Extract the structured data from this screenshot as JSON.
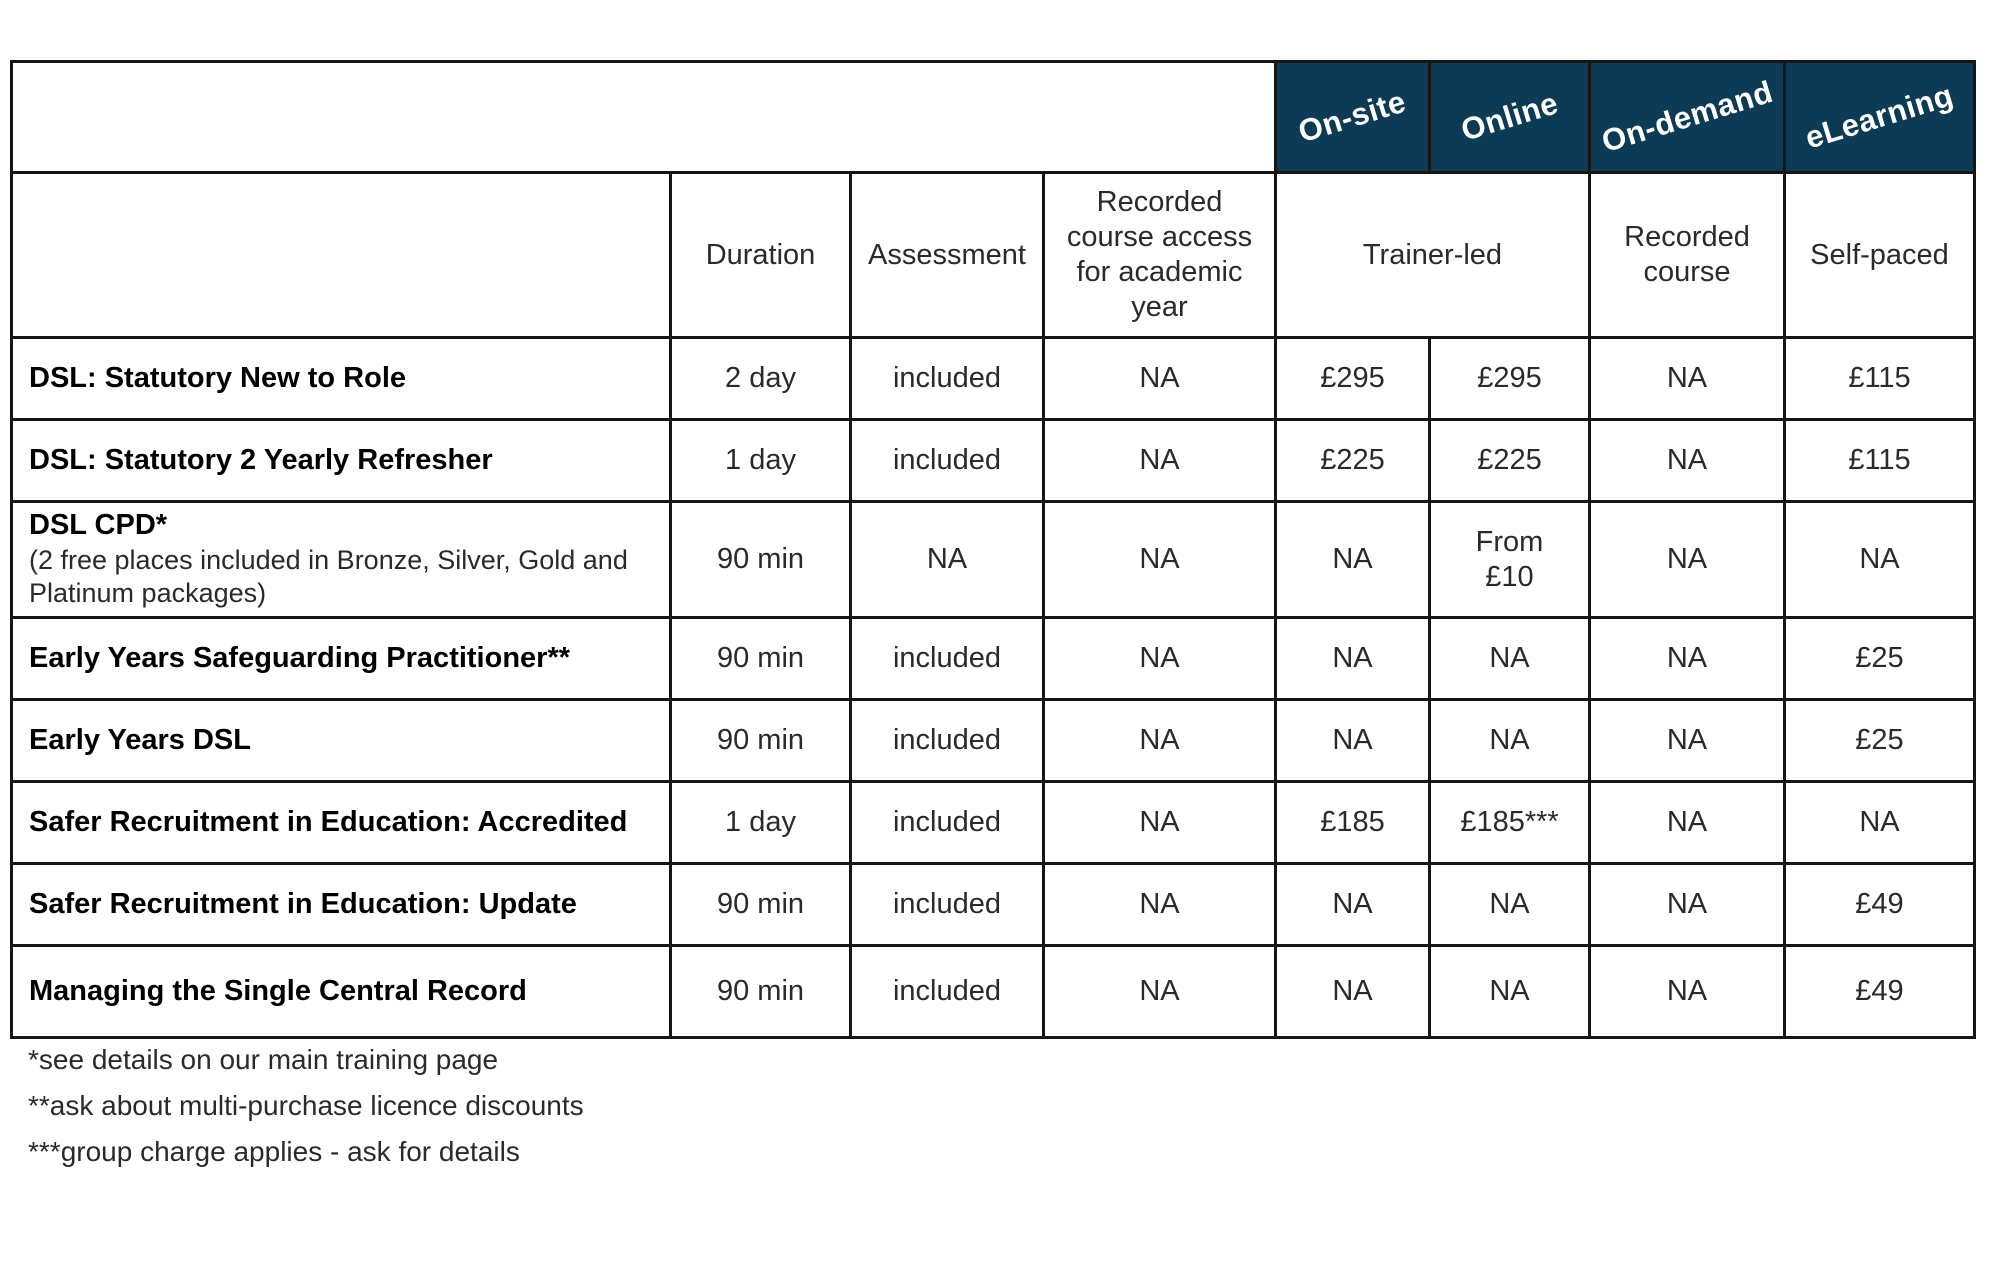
{
  "colors": {
    "header_bg": "#0d3a55",
    "header_text": "#ffffff",
    "border": "#161616",
    "text": "#2a2a2a",
    "title_text": "#000000"
  },
  "table": {
    "delivery_headers": [
      "On-site",
      "Online",
      "On-demand",
      "eLearning"
    ],
    "column_headers": {
      "duration": "Duration",
      "assessment": "Assessment",
      "recorded_access": "Recorded course access for academic year",
      "trainer_led": "Trainer-led",
      "recorded_course": "Recorded course",
      "self_paced": "Self-paced"
    },
    "value_column_keys": [
      "duration",
      "assessment",
      "recorded-access",
      "on-site",
      "online",
      "on-demand",
      "elearning"
    ],
    "rows": [
      {
        "title": "DSL: Statutory New to Role",
        "values": [
          "2 day",
          "included",
          "NA",
          "£295",
          "£295",
          "NA",
          "£115"
        ]
      },
      {
        "title": "DSL: Statutory 2 Yearly Refresher",
        "values": [
          "1 day",
          "included",
          "NA",
          "£225",
          "£225",
          "NA",
          "£115"
        ]
      },
      {
        "title": "DSL CPD*",
        "note": "(2 free places included in Bronze, Silver, Gold and Platinum packages)",
        "values": [
          "90 min",
          "NA",
          "NA",
          "NA",
          "From\n£10",
          "NA",
          "NA"
        ]
      },
      {
        "title": "Early Years Safeguarding Practitioner**",
        "values": [
          "90 min",
          "included",
          "NA",
          "NA",
          "NA",
          "NA",
          "£25"
        ]
      },
      {
        "title": "Early Years DSL",
        "values": [
          "90 min",
          "included",
          "NA",
          "NA",
          "NA",
          "NA",
          "£25"
        ]
      },
      {
        "title": "Safer Recruitment in Education: Accredited",
        "values": [
          "1 day",
          "included",
          "NA",
          "£185",
          "£185***",
          "NA",
          "NA"
        ]
      },
      {
        "title": "Safer Recruitment in Education: Update",
        "values": [
          "90 min",
          "included",
          "NA",
          "NA",
          "NA",
          "NA",
          "£49"
        ]
      },
      {
        "title": "Managing the Single Central Record",
        "values": [
          "90 min",
          "included",
          "NA",
          "NA",
          "NA",
          "NA",
          "£49"
        ]
      }
    ]
  },
  "footnotes": [
    "*see details on our main training page",
    "**ask about multi-purchase licence discounts",
    "***group charge applies - ask for details"
  ]
}
